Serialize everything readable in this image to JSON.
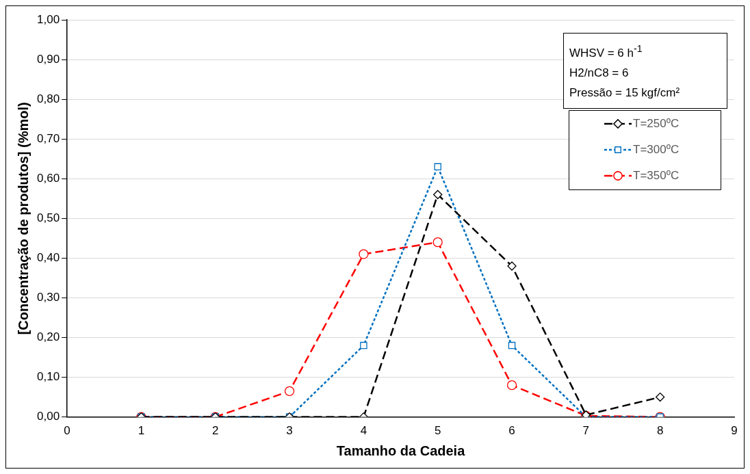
{
  "chart_data": {
    "type": "line",
    "xlabel": "Tamanho da Cadeia",
    "ylabel": "[Concentração de produtos] (%mol)",
    "x": [
      1,
      2,
      3,
      4,
      5,
      6,
      7,
      8
    ],
    "series": [
      {
        "name": "T=250ºC",
        "color": "#000000",
        "marker": "diamond",
        "line_style": "dashed",
        "values": [
          0,
          0,
          0,
          0,
          0.56,
          0.38,
          0.005,
          0.05
        ]
      },
      {
        "name": "T=300ºC",
        "color": "#0070c0",
        "marker": "square",
        "line_style": "dotted",
        "values": [
          0,
          0,
          0,
          0.18,
          0.63,
          0.18,
          0,
          0
        ]
      },
      {
        "name": "T=350ºC",
        "color": "#ff0000",
        "marker": "circle",
        "line_style": "dashed",
        "values": [
          0,
          0,
          0.065,
          0.41,
          0.44,
          0.08,
          0.003,
          0
        ]
      }
    ],
    "xlim": [
      0,
      9
    ],
    "xticks": [
      0,
      1,
      2,
      3,
      4,
      5,
      6,
      7,
      8,
      9
    ],
    "ylim": [
      0,
      1
    ],
    "yticks": [
      {
        "value": 0,
        "label": "0,00"
      },
      {
        "value": 0.1,
        "label": "0,10"
      },
      {
        "value": 0.2,
        "label": "0,20"
      },
      {
        "value": 0.3,
        "label": "0,30"
      },
      {
        "value": 0.4,
        "label": "0,40"
      },
      {
        "value": 0.5,
        "label": "0,50"
      },
      {
        "value": 0.6,
        "label": "0,60"
      },
      {
        "value": 0.7,
        "label": "0,70"
      },
      {
        "value": 0.8,
        "label": "0,80"
      },
      {
        "value": 0.9,
        "label": "0,90"
      },
      {
        "value": 1,
        "label": "1,00"
      }
    ],
    "grid": "y",
    "legend": "top right",
    "annotations": [
      "WHSV = 6 h$^{-1}$",
      "H2/nC8 = 6",
      "Pressão = 15 kgf/cm²"
    ]
  }
}
